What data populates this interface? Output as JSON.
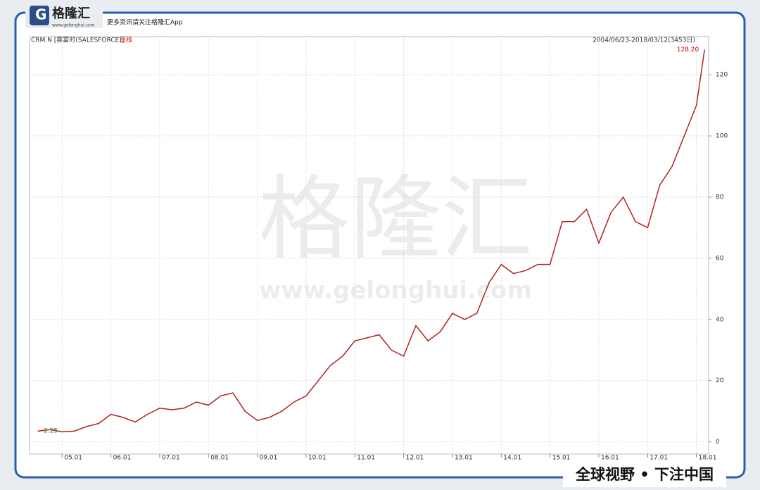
{
  "header": {
    "brand": "格隆汇",
    "site": "www.gelonghui.com",
    "slogan": "更多资讯请关注格隆汇App"
  },
  "footer": "全球视野 • 下注中国",
  "watermark": {
    "brand": "格隆汇",
    "site": "www.gelonghui.com"
  },
  "chart_data": {
    "type": "line",
    "title": "CRM.N [赛富时(SALESFORCE)]",
    "subtitle": "日线",
    "range_label": "2004/06/23-2018/03/12(3453日)",
    "x": [
      "04.07",
      "04.10",
      "05.01",
      "05.04",
      "05.07",
      "05.10",
      "06.01",
      "06.04",
      "06.07",
      "06.10",
      "07.01",
      "07.04",
      "07.07",
      "07.10",
      "08.01",
      "08.04",
      "08.07",
      "08.10",
      "09.01",
      "09.04",
      "09.07",
      "09.10",
      "10.01",
      "10.04",
      "10.07",
      "10.10",
      "11.01",
      "11.04",
      "11.07",
      "11.10",
      "12.01",
      "12.04",
      "12.07",
      "12.10",
      "13.01",
      "13.04",
      "13.07",
      "13.10",
      "14.01",
      "14.04",
      "14.07",
      "14.10",
      "15.01",
      "15.04",
      "15.07",
      "15.10",
      "16.01",
      "16.04",
      "16.07",
      "16.10",
      "17.01",
      "17.04",
      "17.07",
      "17.10",
      "18.01",
      "18.03"
    ],
    "series": [
      {
        "name": "CRM.N",
        "color": "#b22222",
        "values": [
          3.5,
          4.0,
          3.3,
          3.5,
          5,
          6,
          9,
          8,
          6.5,
          9,
          11,
          10.5,
          11,
          13,
          12,
          15,
          16,
          10,
          7,
          8,
          10,
          13,
          15,
          20,
          25,
          28,
          33,
          34,
          35,
          30,
          28,
          38,
          33,
          36,
          42,
          40,
          42,
          52,
          58,
          55,
          56,
          58,
          58,
          72,
          72,
          76,
          65,
          75,
          80,
          72,
          70,
          84,
          90,
          100,
          110,
          128.2
        ]
      }
    ],
    "annotations": [
      {
        "value": 128.2,
        "label": "128.20"
      },
      2.25
    ],
    "xlim": [
      "04.05",
      "18.04"
    ],
    "xticks": [
      "05.01",
      "06.01",
      "07.01",
      "08.01",
      "09.01",
      "10.01",
      "11.01",
      "12.01",
      "13.01",
      "14.01",
      "15.01",
      "16.01",
      "17.01",
      "18.01"
    ],
    "ylim": [
      -4,
      132
    ],
    "yticks": [
      0,
      20,
      40,
      60,
      80,
      100,
      120
    ],
    "grid": true
  }
}
